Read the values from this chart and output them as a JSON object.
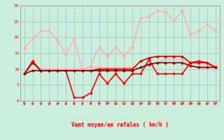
{
  "x": [
    0,
    1,
    2,
    3,
    4,
    5,
    6,
    7,
    8,
    9,
    10,
    11,
    12,
    13,
    14,
    15,
    16,
    17,
    18,
    19,
    20,
    21,
    22,
    23
  ],
  "series": [
    {
      "name": "max_gust_light",
      "color": "#ffaaaa",
      "linewidth": 1.0,
      "marker": "D",
      "markersize": 2.0,
      "values": [
        16.5,
        19.5,
        22,
        22,
        19,
        14.5,
        19.5,
        9.5,
        11,
        17,
        14,
        17,
        14,
        17,
        26,
        26.5,
        28.5,
        28,
        25,
        28.5,
        21,
        22,
        24,
        22
      ]
    },
    {
      "name": "mean_wind_light",
      "color": "#ffaaaa",
      "linewidth": 1.0,
      "marker": "D",
      "markersize": 2.0,
      "values": [
        8.5,
        12,
        10,
        10,
        10,
        10,
        10,
        10,
        10.5,
        10.5,
        10.5,
        10.5,
        10.5,
        10.5,
        10.5,
        11,
        12,
        13,
        13,
        13,
        11,
        11,
        11,
        11
      ]
    },
    {
      "name": "max_gust_dark",
      "color": "#ff0000",
      "linewidth": 1.2,
      "marker": "D",
      "markersize": 2.0,
      "values": [
        8.5,
        12.5,
        9.5,
        9.5,
        9.5,
        9.5,
        1,
        1,
        2.5,
        8.5,
        5.5,
        8.5,
        5.5,
        8.5,
        8.5,
        13,
        8.5,
        8.5,
        8.5,
        8.5,
        12,
        12.5,
        12,
        10.5
      ]
    },
    {
      "name": "mean_wind_dark1",
      "color": "#cc0000",
      "linewidth": 1.2,
      "marker": "D",
      "markersize": 2.0,
      "values": [
        8.5,
        12,
        9.5,
        9.5,
        9.5,
        9.5,
        9.5,
        9.5,
        9.5,
        10,
        10,
        10,
        10,
        10,
        12.5,
        13.5,
        14,
        14,
        14,
        14,
        12,
        12,
        12,
        10.5
      ]
    },
    {
      "name": "mean_wind_dark2",
      "color": "#880000",
      "linewidth": 1.2,
      "marker": "D",
      "markersize": 2.0,
      "values": [
        8.5,
        9.5,
        9.5,
        9.5,
        9.5,
        9.5,
        9.5,
        9.5,
        9.5,
        9.5,
        9.5,
        9.5,
        9.5,
        9.5,
        10.5,
        11.5,
        12,
        12,
        12,
        12,
        11,
        10.5,
        10.5,
        10.5
      ]
    }
  ],
  "xlim": [
    -0.5,
    23.5
  ],
  "ylim": [
    0,
    30
  ],
  "yticks": [
    0,
    5,
    10,
    15,
    20,
    25,
    30
  ],
  "xticks": [
    0,
    1,
    2,
    3,
    4,
    5,
    6,
    7,
    8,
    9,
    10,
    11,
    12,
    13,
    14,
    15,
    16,
    17,
    18,
    19,
    20,
    21,
    22,
    23
  ],
  "xlabel": "Vent moyen/en rafales ( km/h )",
  "bg_color": "#cceedd",
  "grid_color": "#aacccc",
  "label_color": "#ff0000",
  "arrow_color": "#ff0000"
}
